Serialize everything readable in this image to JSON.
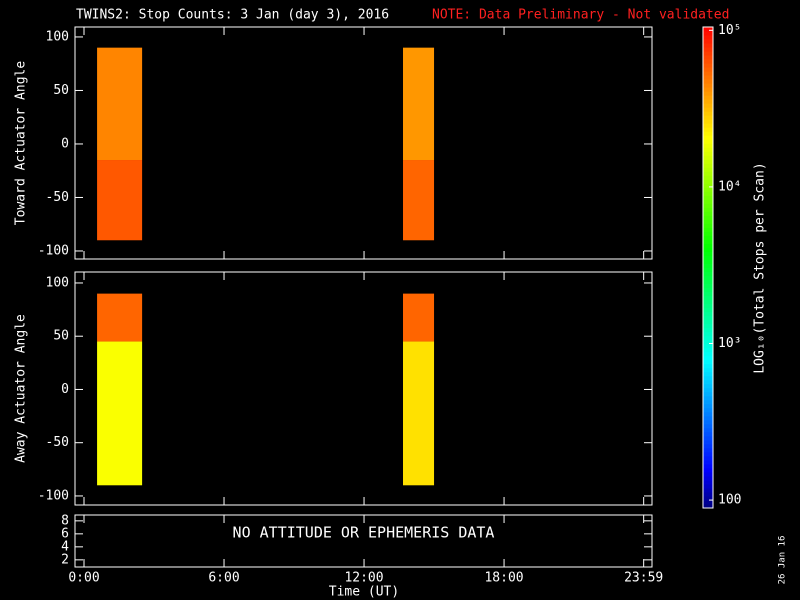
{
  "title": "TWINS2: Stop Counts:  3 Jan (day   3), 2016",
  "note": "NOTE: Data Preliminary - Not validated",
  "xlabel": "Time (UT)",
  "xlim": [
    -0.386,
    24.34
  ],
  "xticks": [
    {
      "value": 0,
      "label": "0:00"
    },
    {
      "value": 6,
      "label": "6:00"
    },
    {
      "value": 12,
      "label": "12:00"
    },
    {
      "value": 18,
      "label": "18:00"
    },
    {
      "value": 23.983,
      "label": "23:59"
    }
  ],
  "stamp": "26 Jan 16",
  "colorbar": {
    "label": "LOG₁₀(Total Stops per Scan)",
    "clim": [
      89,
      105000
    ],
    "ticks": [
      {
        "value": 100000,
        "label": "10⁵"
      },
      {
        "value": 10000,
        "label": "10⁴"
      },
      {
        "value": 1000,
        "label": "10³"
      },
      100
    ]
  },
  "chart_data": [
    {
      "type": "heatmap",
      "ylabel": "Toward Actuator Angle",
      "ylim": [
        -107.5,
        109.3
      ],
      "yticks": [
        -100,
        -50,
        0,
        50,
        100
      ],
      "blocks": [
        {
          "x": [
            0.56,
            2.49
          ],
          "y": [
            -15,
            90
          ],
          "value": 45000
        },
        {
          "x": [
            0.56,
            2.49
          ],
          "y": [
            -90,
            -15
          ],
          "value": 60000
        },
        {
          "x": [
            13.67,
            15.0
          ],
          "y": [
            -15,
            90
          ],
          "value": 40000
        },
        {
          "x": [
            13.67,
            15.0
          ],
          "y": [
            -90,
            -15
          ],
          "value": 55000
        }
      ]
    },
    {
      "type": "heatmap",
      "ylabel": "Away Actuator Angle",
      "ylim": [
        -108.5,
        110.3
      ],
      "yticks": [
        -100,
        -50,
        0,
        50,
        100
      ],
      "blocks": [
        {
          "x": [
            0.56,
            2.49
          ],
          "y": [
            45,
            90
          ],
          "value": 55000
        },
        {
          "x": [
            0.56,
            2.49
          ],
          "y": [
            -90,
            45
          ],
          "value": 20000
        },
        {
          "x": [
            13.67,
            15.0
          ],
          "y": [
            45,
            90
          ],
          "value": 55000
        },
        {
          "x": [
            13.67,
            15.0
          ],
          "y": [
            -90,
            45
          ],
          "value": 25000
        }
      ]
    },
    {
      "type": "empty",
      "ylim": [
        0.9,
        8.9
      ],
      "yticks": [
        2,
        4,
        6,
        8
      ],
      "annotation": "NO ATTITUDE OR EPHEMERIS DATA"
    }
  ]
}
